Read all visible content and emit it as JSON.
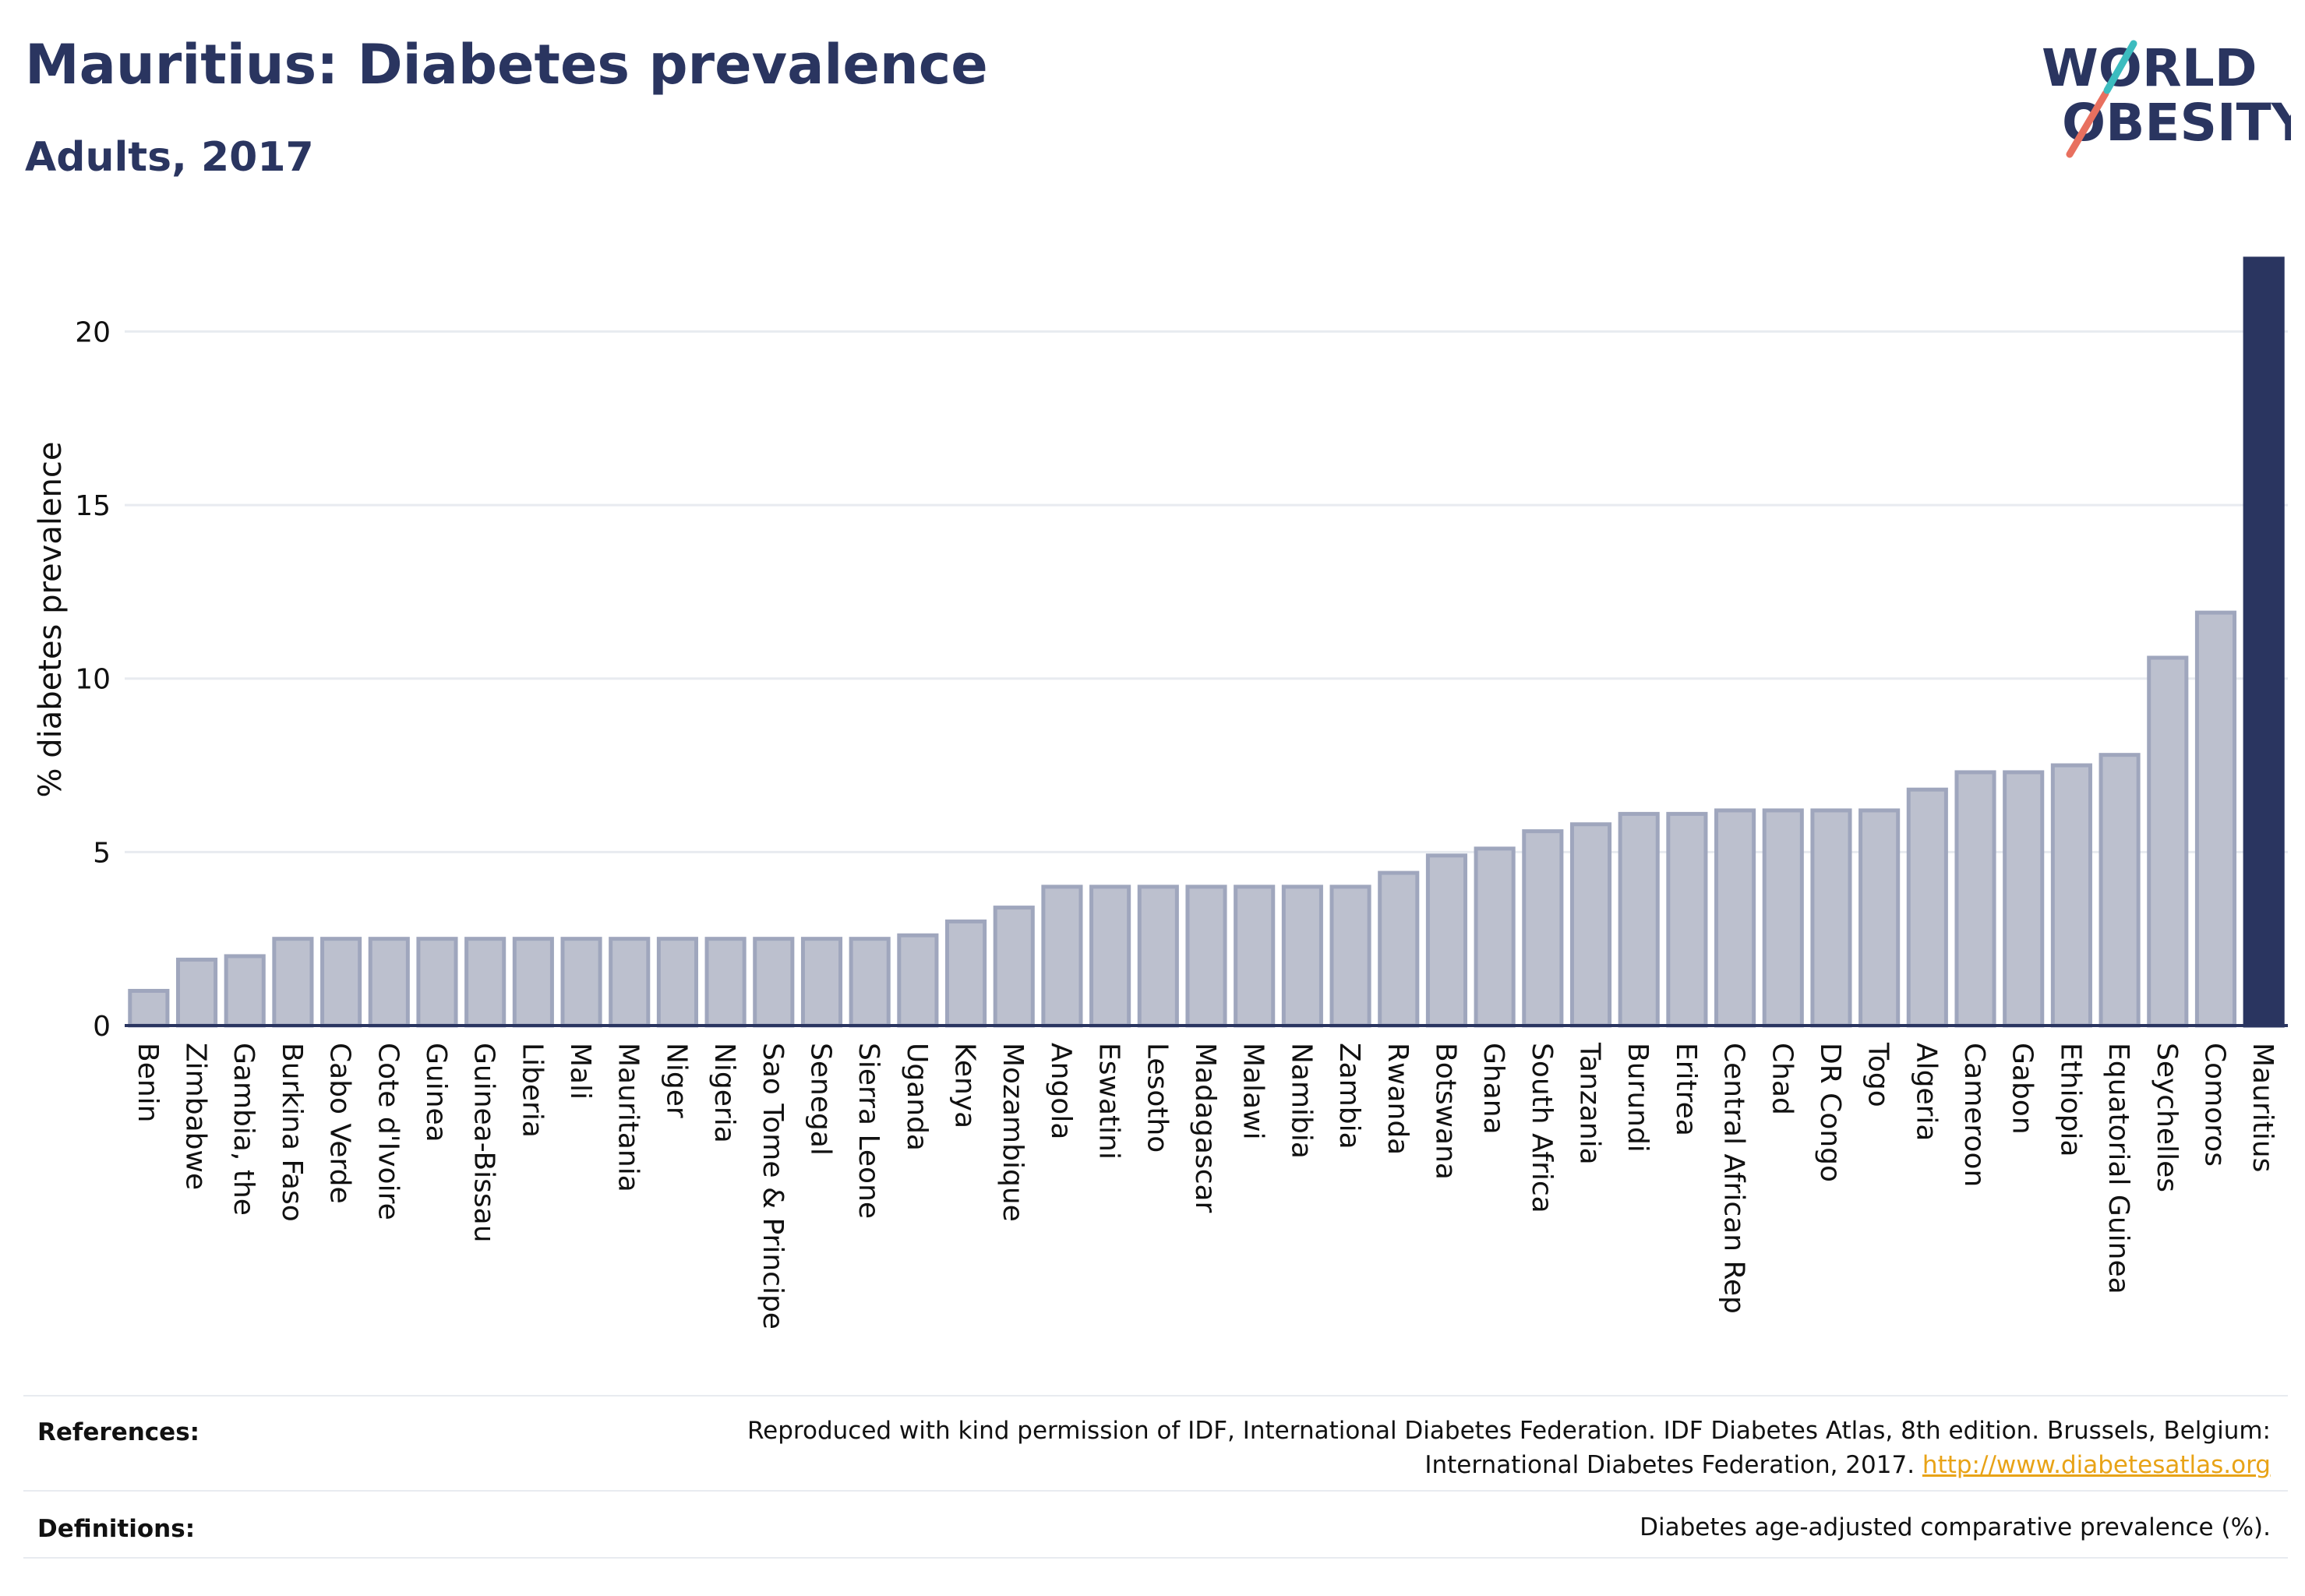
{
  "header": {
    "title": "Mauritius: Diabetes prevalence",
    "subtitle": "Adults, 2017"
  },
  "logo": {
    "line1": "WORLD",
    "line2": "OBESITY",
    "text_color": "#2a3560",
    "slash_colors": [
      "#e8705f",
      "#3cbcbf"
    ]
  },
  "chart_data": {
    "type": "bar",
    "ylabel": "% diabetes prevalence",
    "ylim": [
      0,
      22.3
    ],
    "yticks": [
      0,
      5,
      10,
      15,
      20
    ],
    "grid": true,
    "highlight": "Mauritius",
    "colors": {
      "bar": "#bcc0ce",
      "bar_edge": "#9fa6bd",
      "highlight": "#2a3560",
      "grid": "#e8ebf0"
    },
    "categories": [
      "Benin",
      "Zimbabwe",
      "Gambia, the",
      "Burkina Faso",
      "Cabo Verde",
      "Cote d'Ivoire",
      "Guinea",
      "Guinea-Bissau",
      "Liberia",
      "Mali",
      "Mauritania",
      "Niger",
      "Nigeria",
      "Sao Tome & Principe",
      "Senegal",
      "Sierra Leone",
      "Uganda",
      "Kenya",
      "Mozambique",
      "Angola",
      "Eswatini",
      "Lesotho",
      "Madagascar",
      "Malawi",
      "Namibia",
      "Zambia",
      "Rwanda",
      "Botswana",
      "Ghana",
      "South Africa",
      "Tanzania",
      "Burundi",
      "Eritrea",
      "Central African Rep",
      "Chad",
      "DR Congo",
      "Togo",
      "Algeria",
      "Cameroon",
      "Gabon",
      "Ethiopia",
      "Equatorial Guinea",
      "Seychelles",
      "Comoros",
      "Mauritius"
    ],
    "values": [
      1.0,
      1.9,
      2.0,
      2.5,
      2.5,
      2.5,
      2.5,
      2.5,
      2.5,
      2.5,
      2.5,
      2.5,
      2.5,
      2.5,
      2.5,
      2.5,
      2.6,
      3.0,
      3.4,
      4.0,
      4.0,
      4.0,
      4.0,
      4.0,
      4.0,
      4.0,
      4.4,
      4.9,
      5.1,
      5.6,
      5.8,
      6.1,
      6.1,
      6.2,
      6.2,
      6.2,
      6.2,
      6.8,
      7.3,
      7.3,
      7.5,
      7.8,
      10.6,
      11.9,
      22.1
    ]
  },
  "footer": {
    "references_label": "References:",
    "references_line1": "Reproduced with kind permission of IDF, International Diabetes Federation. IDF Diabetes Atlas, 8th edition. Brussels, Belgium:",
    "references_line2": "International Diabetes Federation, 2017.",
    "references_link": "http://www.diabetesatlas.org",
    "definitions_label": "Definitions:",
    "definitions_text": "Diabetes age-adjusted comparative prevalence (%)."
  }
}
